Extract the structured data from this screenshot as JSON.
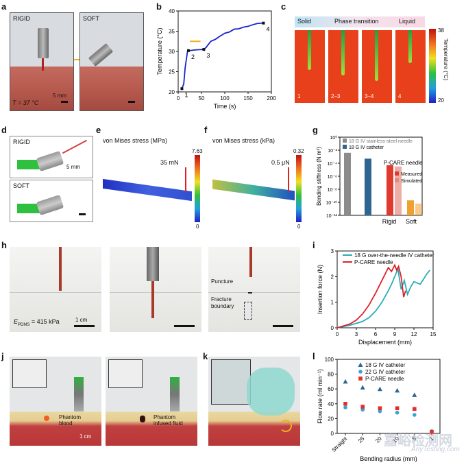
{
  "panels": {
    "a": {
      "label": "a",
      "rigid": "RIGID",
      "soft": "SOFT",
      "temp": "T = 37 °C",
      "scale": "5 mm"
    },
    "b": {
      "label": "b"
    },
    "c": {
      "label": "c",
      "phases": [
        "Solid",
        "Phase transition",
        "Liquid"
      ],
      "frames": [
        "1",
        "2–3",
        "3–4",
        "4"
      ],
      "colorbar_max": "38",
      "colorbar_min": "20",
      "colorbar_label": "Temperature (°C)"
    },
    "d": {
      "label": "d",
      "rigid": "RIGID",
      "soft": "SOFT",
      "scale": "5 mm"
    },
    "e": {
      "label": "e",
      "title": "von Mises stress (MPa)",
      "max": "7.63",
      "min": "0",
      "force": "35 mN"
    },
    "f": {
      "label": "f",
      "title": "von Mises stress (kPa)",
      "max": "0.32",
      "min": "0",
      "force": "0.5 μN"
    },
    "g": {
      "label": "g"
    },
    "h": {
      "label": "h",
      "modulus": "E",
      "modulus_sub": "PDMS",
      "modulus_val": " = 415 kPa",
      "scale": "1 cm",
      "puncture": "Puncture",
      "fracture1": "Fracture",
      "fracture2": "boundary"
    },
    "i": {
      "label": "i"
    },
    "j": {
      "label": "j",
      "blood1": "Phantom",
      "blood2": "blood",
      "fluid1": "Phantom",
      "fluid2": "infused fluid",
      "scale": "1 cm"
    },
    "k": {
      "label": "k"
    },
    "l": {
      "label": "l"
    }
  },
  "chart_data": [
    {
      "id": "b",
      "type": "line",
      "title": "",
      "xlabel": "Time (s)",
      "ylabel": "Temperature (°C)",
      "xlim": [
        0,
        200
      ],
      "ylim": [
        20,
        40
      ],
      "xticks": [
        0,
        50,
        100,
        150,
        200
      ],
      "yticks": [
        20,
        25,
        30,
        35,
        40
      ],
      "x": [
        8,
        12,
        15,
        20,
        25,
        30,
        40,
        55,
        60,
        70,
        80,
        90,
        100,
        110,
        120,
        130,
        140,
        150,
        160,
        170,
        180,
        185
      ],
      "y": [
        20.8,
        22,
        26,
        30,
        30.2,
        30.3,
        30.4,
        30.5,
        31,
        32.5,
        33,
        33.8,
        34.5,
        34.8,
        35.5,
        35.6,
        36,
        36.2,
        36.6,
        36.9,
        37,
        37.1
      ],
      "annotations": [
        {
          "text": "1",
          "x": 8,
          "y": 20.8
        },
        {
          "text": "2",
          "x": 22,
          "y": 30.2
        },
        {
          "text": "3",
          "x": 55,
          "y": 30.5
        },
        {
          "text": "4",
          "x": 183,
          "y": 37
        }
      ],
      "color": "#1a22c8"
    },
    {
      "id": "g",
      "type": "bar",
      "ylabel": "Bending stiffness (N m²)",
      "yscale": "log",
      "ylim_exp": [
        -12,
        0
      ],
      "yticks": [
        "10⁰",
        "10⁻²",
        "10⁻⁴",
        "10⁻⁶",
        "10⁻⁸",
        "10⁻¹⁰",
        "10⁻¹²"
      ],
      "categories": [
        "Rigid",
        "Soft"
      ],
      "legend": [
        "18 G IV stainless-steel needle",
        "18 G IV catheter"
      ],
      "group_label": "P-CARE needle",
      "sub_legend": [
        "Measured",
        "Simulated"
      ],
      "series": [
        {
          "name": "18 G IV stainless-steel needle",
          "exp": -2.4,
          "color": "#8c8c8c"
        },
        {
          "name": "18 G IV catheter",
          "exp": -3.3,
          "color": "#2f6690"
        },
        {
          "name": "Measured (Rigid)",
          "exp": -4.3,
          "color": "#e03a2f"
        },
        {
          "name": "Simulated (Rigid)",
          "exp": -4.5,
          "color": "#e06a5f"
        },
        {
          "name": "Measured (Soft)",
          "exp": -9.7,
          "color": "#f0a030"
        },
        {
          "name": "Simulated (Soft)",
          "exp": -10.2,
          "color": "#f0a030"
        }
      ]
    },
    {
      "id": "i",
      "type": "line",
      "xlabel": "Displacement (mm)",
      "ylabel": "Insertion force (N)",
      "xlim": [
        0,
        15
      ],
      "ylim": [
        0,
        3
      ],
      "xticks": [
        0,
        3,
        6,
        9,
        12,
        15
      ],
      "yticks": [
        0,
        1,
        2,
        3
      ],
      "series": [
        {
          "name": "18 G over-the-needle IV catheter",
          "color": "#2aacb8",
          "x": [
            0,
            2,
            4,
            5,
            6,
            7,
            8,
            8.5,
            9,
            9.5,
            10,
            10.5,
            11,
            11.5,
            12,
            13,
            14,
            14.5
          ],
          "y": [
            0,
            0.1,
            0.25,
            0.4,
            0.65,
            1.0,
            1.45,
            1.7,
            2.0,
            2.3,
            1.5,
            1.85,
            1.3,
            1.6,
            1.8,
            1.7,
            2.1,
            2.25
          ]
        },
        {
          "name": "P-CARE needle",
          "color": "#e0202a",
          "x": [
            0,
            2,
            3,
            4,
            5,
            6,
            7,
            7.5,
            8,
            8.5,
            9,
            9.3,
            9.6,
            10,
            10.4,
            10.7
          ],
          "y": [
            0,
            0.15,
            0.3,
            0.55,
            0.9,
            1.35,
            1.85,
            2.1,
            2.35,
            2.2,
            2.45,
            2.25,
            2.4,
            2.0,
            1.2,
            1.45
          ]
        }
      ]
    },
    {
      "id": "l",
      "type": "scatter",
      "xlabel": "Bending radius (mm)",
      "ylabel": "Flow rate (ml min⁻¹)",
      "categories": [
        "Straight",
        "25",
        "20",
        "10",
        "5",
        "1"
      ],
      "ylim": [
        0,
        100
      ],
      "yticks": [
        0,
        20,
        40,
        60,
        80,
        100
      ],
      "series": [
        {
          "name": "18 G IV catheter",
          "marker": "triangle",
          "color": "#2f6690",
          "values": [
            70,
            62,
            60,
            58,
            52,
            null
          ]
        },
        {
          "name": "22 G IV catheter",
          "marker": "circle",
          "color": "#3aa0d8",
          "values": [
            35,
            32,
            30,
            28,
            25,
            3
          ]
        },
        {
          "name": "P-CARE needle",
          "marker": "square",
          "color": "#e0302a",
          "values": [
            40,
            36,
            34,
            34,
            33,
            2
          ]
        }
      ]
    }
  ],
  "watermark": {
    "cn": "嘉峪检测网",
    "en": "AnyTesting.com"
  }
}
